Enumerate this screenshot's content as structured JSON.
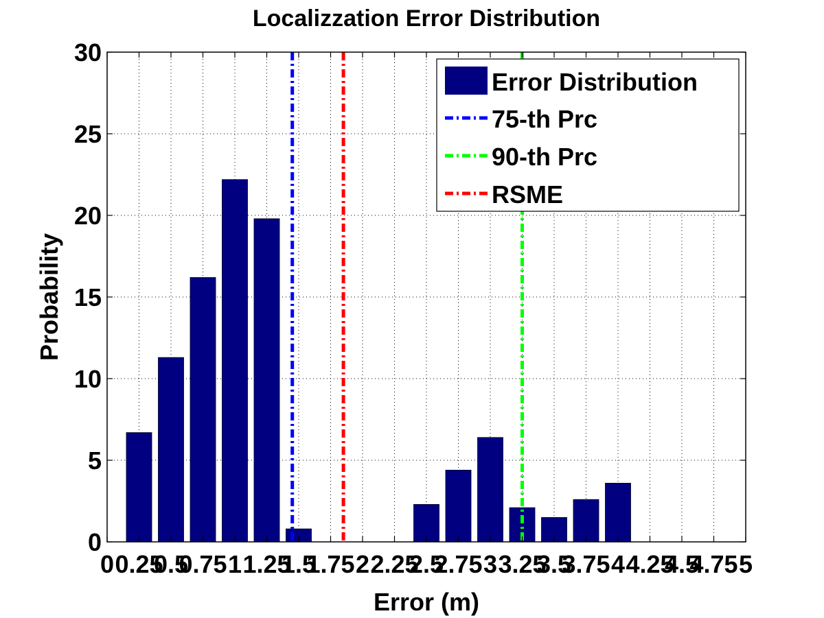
{
  "chart_data": {
    "type": "bar",
    "title": "Localizzation Error Distribution",
    "xlabel": "Error (m)",
    "ylabel": "Probability",
    "xlim": [
      0,
      5
    ],
    "ylim": [
      0,
      30
    ],
    "grid": true,
    "legend_position": "top-right",
    "x_tick_labels": [
      "0",
      "0.25",
      "0.5",
      "0.75",
      "1",
      "1.25",
      "1.5",
      "1.75",
      "2",
      "2.25",
      "2.5",
      "2.75",
      "3",
      "3.25",
      "3.5",
      "3.75",
      "4",
      "4.25",
      "4.5",
      "4.75",
      "5"
    ],
    "y_tick_labels": [
      "0",
      "5",
      "10",
      "15",
      "20",
      "25",
      "30"
    ],
    "series": [
      {
        "name": "Error Distribution",
        "color": "#000080",
        "x": [
          0.25,
          0.5,
          0.75,
          1.0,
          1.25,
          1.5,
          1.75,
          2.0,
          2.25,
          2.5,
          2.75,
          3.0,
          3.25,
          3.5,
          3.75,
          4.0,
          4.25,
          4.5,
          4.75
        ],
        "values": [
          6.7,
          11.3,
          16.2,
          22.2,
          19.8,
          0.8,
          0,
          0,
          0,
          2.3,
          4.4,
          6.4,
          2.1,
          1.5,
          2.6,
          3.6,
          0,
          0,
          0
        ]
      }
    ],
    "reference_lines": [
      {
        "name": "75-th Prc",
        "x": 1.45,
        "color": "#0000ff"
      },
      {
        "name": "90-th Prc",
        "x": 3.25,
        "color": "#00ff00"
      },
      {
        "name": "RSME",
        "x": 1.85,
        "color": "#ff0000"
      }
    ]
  }
}
